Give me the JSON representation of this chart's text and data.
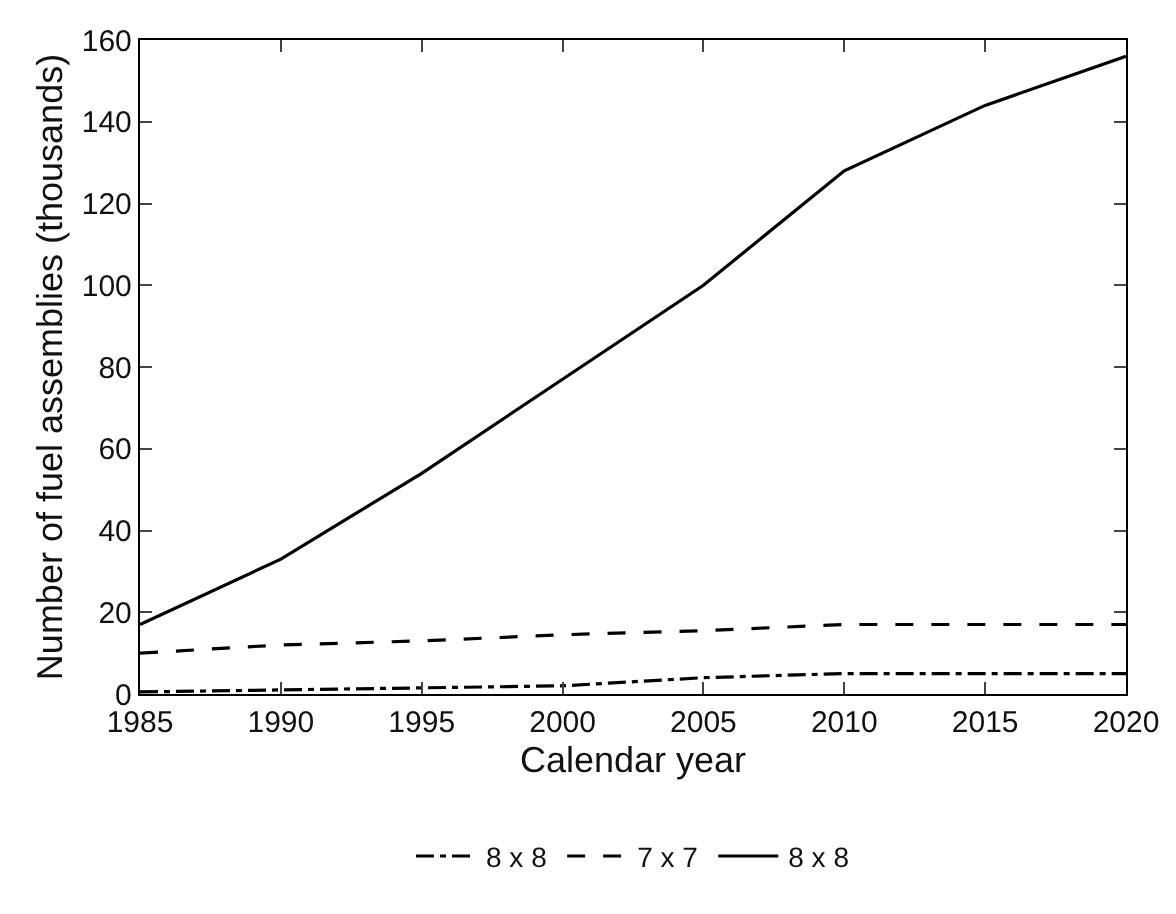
{
  "chart_data": {
    "type": "line",
    "xlabel": "Calendar year",
    "ylabel": "Number of fuel assemblies (thousands)",
    "x": [
      1985,
      1990,
      1995,
      2000,
      2005,
      2010,
      2015,
      2020
    ],
    "series": [
      {
        "name": "8 x 8",
        "color": "#000000",
        "line_style": "dashdot",
        "values": [
          0.5,
          1,
          1.5,
          2,
          4,
          5,
          5,
          5
        ]
      },
      {
        "name": "7 x 7",
        "color": "#000000",
        "line_style": "dashed",
        "values": [
          10,
          12,
          13,
          14.5,
          15.5,
          17,
          17,
          17
        ]
      },
      {
        "name": "8 x 8",
        "color": "#000000",
        "line_style": "solid",
        "values": [
          17,
          33,
          54,
          77,
          100,
          128,
          144,
          156
        ]
      }
    ],
    "xlim": [
      1985,
      2020
    ],
    "xticks": [
      1985,
      1990,
      1995,
      2000,
      2005,
      2010,
      2015,
      2020
    ],
    "ylim": [
      0,
      160
    ],
    "yticks": [
      0,
      20,
      40,
      60,
      80,
      100,
      120,
      140,
      160
    ],
    "grid": false,
    "legend": "bottom",
    "marker": "none"
  }
}
